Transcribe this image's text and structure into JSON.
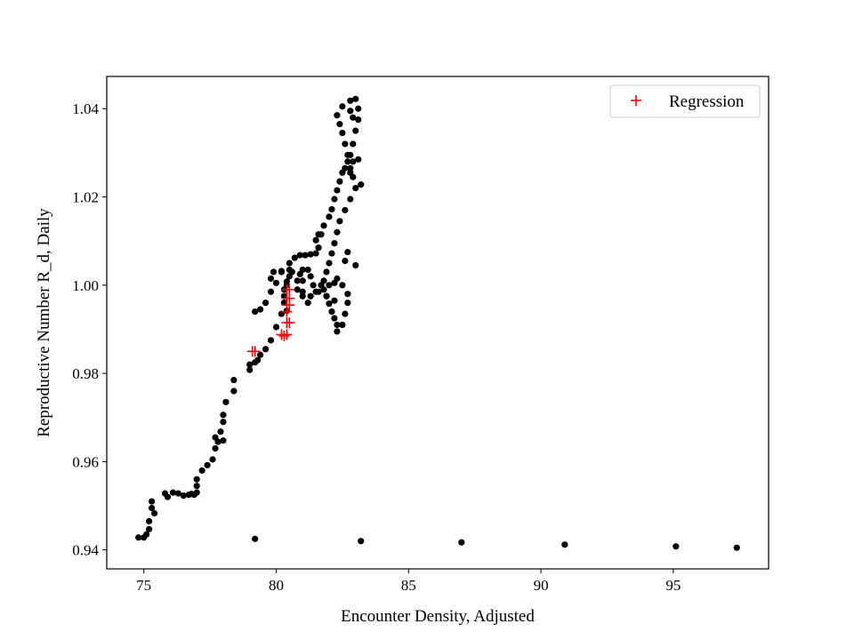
{
  "chart_data": {
    "type": "scatter",
    "title": "",
    "xlabel": "Encounter Density, Adjusted",
    "ylabel": "Reproductive Number R_d, Daily",
    "xlim": [
      73.6,
      98.6
    ],
    "ylim": [
      0.9357,
      1.0473
    ],
    "xticks": [
      75,
      80,
      85,
      90,
      95
    ],
    "yticks": [
      0.94,
      0.96,
      0.98,
      1.0,
      1.02,
      1.04
    ],
    "xtick_labels": [
      "75",
      "80",
      "85",
      "90",
      "95"
    ],
    "ytick_labels": [
      "0.94",
      "0.96",
      "0.98",
      "1.00",
      "1.02",
      "1.04"
    ],
    "grid": false,
    "legend": {
      "placement": "top-right",
      "entries": [
        "Regression"
      ]
    },
    "colors": {
      "observed": "#000000",
      "regression": "#ff0000"
    },
    "series": [
      {
        "marker": "dot",
        "color": "#000000",
        "points": [
          [
            74.8,
            0.9428
          ],
          [
            75.0,
            0.9428
          ],
          [
            75.1,
            0.9435
          ],
          [
            75.2,
            0.9447
          ],
          [
            75.2,
            0.9465
          ],
          [
            75.3,
            0.9495
          ],
          [
            75.3,
            0.951
          ],
          [
            75.4,
            0.9483
          ],
          [
            75.8,
            0.9528
          ],
          [
            75.9,
            0.952
          ],
          [
            76.1,
            0.953
          ],
          [
            76.3,
            0.9528
          ],
          [
            76.5,
            0.9523
          ],
          [
            76.7,
            0.9525
          ],
          [
            76.8,
            0.9527
          ],
          [
            76.9,
            0.9525
          ],
          [
            77.0,
            0.953
          ],
          [
            77.0,
            0.9545
          ],
          [
            77.0,
            0.956
          ],
          [
            77.2,
            0.958
          ],
          [
            77.4,
            0.9592
          ],
          [
            77.6,
            0.9605
          ],
          [
            77.7,
            0.963
          ],
          [
            77.8,
            0.9645
          ],
          [
            77.7,
            0.9655
          ],
          [
            78.0,
            0.9648
          ],
          [
            77.9,
            0.9668
          ],
          [
            78.0,
            0.969
          ],
          [
            78.0,
            0.9706
          ],
          [
            78.1,
            0.9735
          ],
          [
            78.4,
            0.976
          ],
          [
            78.4,
            0.9785
          ],
          [
            79.0,
            0.9808
          ],
          [
            79.0,
            0.982
          ],
          [
            79.2,
            0.9825
          ],
          [
            79.3,
            0.983
          ],
          [
            79.4,
            0.9842
          ],
          [
            79.6,
            0.9855
          ],
          [
            79.8,
            0.9875
          ],
          [
            80.0,
            0.9905
          ],
          [
            80.2,
            0.9935
          ],
          [
            80.4,
            0.9942
          ],
          [
            80.3,
            0.996
          ],
          [
            80.3,
            0.9975
          ],
          [
            80.3,
            0.999
          ],
          [
            80.4,
            1.0008
          ],
          [
            80.5,
            1.002
          ],
          [
            80.5,
            1.0035
          ],
          [
            80.5,
            1.005
          ],
          [
            80.7,
            1.0062
          ],
          [
            80.9,
            1.0068
          ],
          [
            81.1,
            1.0068
          ],
          [
            81.3,
            1.007
          ],
          [
            81.5,
            1.0072
          ],
          [
            81.6,
            1.0085
          ],
          [
            81.5,
            1.0102
          ],
          [
            81.6,
            1.0115
          ],
          [
            81.7,
            1.0115
          ],
          [
            81.8,
            1.0135
          ],
          [
            82.0,
            1.0155
          ],
          [
            82.1,
            1.0172
          ],
          [
            82.2,
            1.0195
          ],
          [
            82.3,
            1.0215
          ],
          [
            82.4,
            1.0235
          ],
          [
            82.5,
            1.0255
          ],
          [
            82.6,
            1.0265
          ],
          [
            82.7,
            1.028
          ],
          [
            82.8,
            1.0295
          ],
          [
            82.9,
            1.032
          ],
          [
            83.0,
            1.035
          ],
          [
            83.1,
            1.0375
          ],
          [
            83.1,
            1.04
          ],
          [
            83.0,
            1.0422
          ],
          [
            82.8,
            1.0418
          ],
          [
            82.5,
            1.0405
          ],
          [
            82.3,
            1.0385
          ],
          [
            82.4,
            1.0365
          ],
          [
            82.5,
            1.0345
          ],
          [
            82.6,
            1.032
          ],
          [
            82.7,
            1.0295
          ],
          [
            82.8,
            1.0265
          ],
          [
            82.9,
            1.0245
          ],
          [
            83.0,
            1.022
          ],
          [
            83.2,
            1.0228
          ],
          [
            82.8,
            1.0195
          ],
          [
            82.6,
            1.017
          ],
          [
            82.4,
            1.0145
          ],
          [
            82.3,
            1.012
          ],
          [
            82.2,
            1.0095
          ],
          [
            82.1,
            1.0072
          ],
          [
            82.0,
            1.005
          ],
          [
            81.9,
            1.003
          ],
          [
            81.8,
            1.001
          ],
          [
            81.8,
            0.999
          ],
          [
            81.9,
            0.9975
          ],
          [
            82.0,
            0.9958
          ],
          [
            82.1,
            0.994
          ],
          [
            82.2,
            0.9925
          ],
          [
            82.3,
            0.991
          ],
          [
            82.3,
            0.9895
          ],
          [
            82.5,
            0.991
          ],
          [
            82.6,
            0.9935
          ],
          [
            82.7,
            0.996
          ],
          [
            82.7,
            0.998
          ],
          [
            82.5,
            1.0
          ],
          [
            82.3,
            1.0015
          ],
          [
            82.2,
            1.0005
          ],
          [
            82.0,
            1.0
          ],
          [
            81.7,
            1.0
          ],
          [
            81.5,
            0.9985
          ],
          [
            81.3,
            0.9975
          ],
          [
            81.2,
            0.996
          ],
          [
            81.0,
            0.9975
          ],
          [
            80.8,
            0.999
          ],
          [
            80.8,
            1.001
          ],
          [
            80.9,
            1.0025
          ],
          [
            81.0,
            1.0035
          ],
          [
            81.2,
            1.0035
          ],
          [
            81.3,
            1.002
          ],
          [
            81.0,
            1.001
          ],
          [
            80.6,
            1.003
          ],
          [
            80.2,
            1.0032
          ],
          [
            79.9,
            1.003
          ],
          [
            79.8,
            1.0015
          ],
          [
            80.0,
            1.0005
          ],
          [
            79.8,
            0.9985
          ],
          [
            79.6,
            0.996
          ],
          [
            79.4,
            0.9945
          ],
          [
            79.2,
            0.994
          ],
          [
            80.2,
            1.003
          ],
          [
            80.4,
            1.0
          ],
          [
            81.0,
            0.9985
          ],
          [
            81.4,
            1.0
          ],
          [
            81.6,
            0.9985
          ],
          [
            81.9,
            0.9975
          ],
          [
            82.2,
            0.9965
          ],
          [
            82.6,
            1.0055
          ],
          [
            82.7,
            1.0075
          ],
          [
            83.0,
            1.0045
          ],
          [
            82.8,
            1.0255
          ],
          [
            82.9,
            1.028
          ],
          [
            83.1,
            1.0285
          ],
          [
            82.9,
            1.038
          ],
          [
            82.8,
            1.0395
          ],
          [
            79.2,
            0.9425
          ],
          [
            83.2,
            0.942
          ],
          [
            87.0,
            0.9417
          ],
          [
            90.9,
            0.9412
          ],
          [
            95.1,
            0.9408
          ],
          [
            97.4,
            0.9405
          ]
        ]
      },
      {
        "name": "Regression",
        "marker": "plus",
        "color": "#ff0000",
        "points": [
          [
            79.1,
            0.985
          ],
          [
            79.2,
            0.985
          ],
          [
            80.2,
            0.9888
          ],
          [
            80.3,
            0.9885
          ],
          [
            80.4,
            0.9888
          ],
          [
            80.4,
            0.9915
          ],
          [
            80.5,
            0.9915
          ],
          [
            80.4,
            0.994
          ],
          [
            80.4,
            0.9955
          ],
          [
            80.5,
            0.9955
          ],
          [
            80.4,
            0.997
          ],
          [
            80.5,
            0.997
          ],
          [
            80.4,
            0.999
          ],
          [
            80.5,
            0.999
          ]
        ]
      }
    ]
  }
}
